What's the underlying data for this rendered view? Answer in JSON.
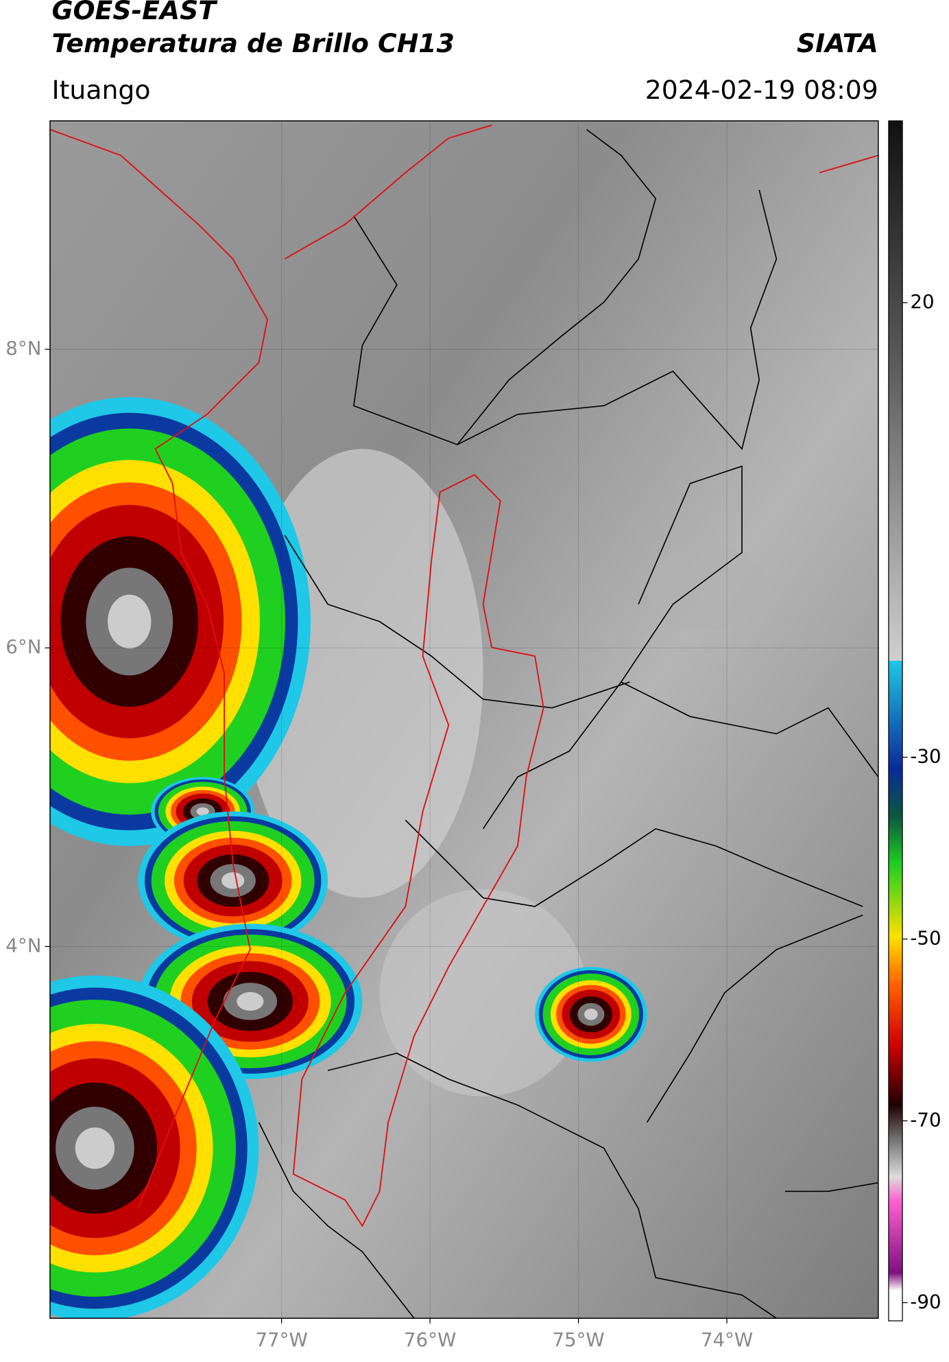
{
  "header": {
    "title": "GOES-EAST",
    "subtitle": "Temperatura de Brillo CH13",
    "brand": "SIATA",
    "location": "Ituango",
    "datetime": "2024-02-19 08:09"
  },
  "chart_data": {
    "type": "map",
    "xlim": [
      -78.56,
      -72.98
    ],
    "ylim": [
      1.51,
      9.53
    ],
    "xticks": [
      {
        "value": -77,
        "label": "77°W"
      },
      {
        "value": -76,
        "label": "76°W"
      },
      {
        "value": -75,
        "label": "75°W"
      },
      {
        "value": -74,
        "label": "74°W"
      }
    ],
    "yticks": [
      {
        "value": 4,
        "label": "4°N"
      },
      {
        "value": 6,
        "label": "6°N"
      },
      {
        "value": 8,
        "label": "8°N"
      }
    ],
    "grid": true,
    "colorbar": {
      "lim": [
        -92,
        40
      ],
      "ticks": [
        -90,
        -70,
        -50,
        -30,
        20
      ]
    }
  }
}
